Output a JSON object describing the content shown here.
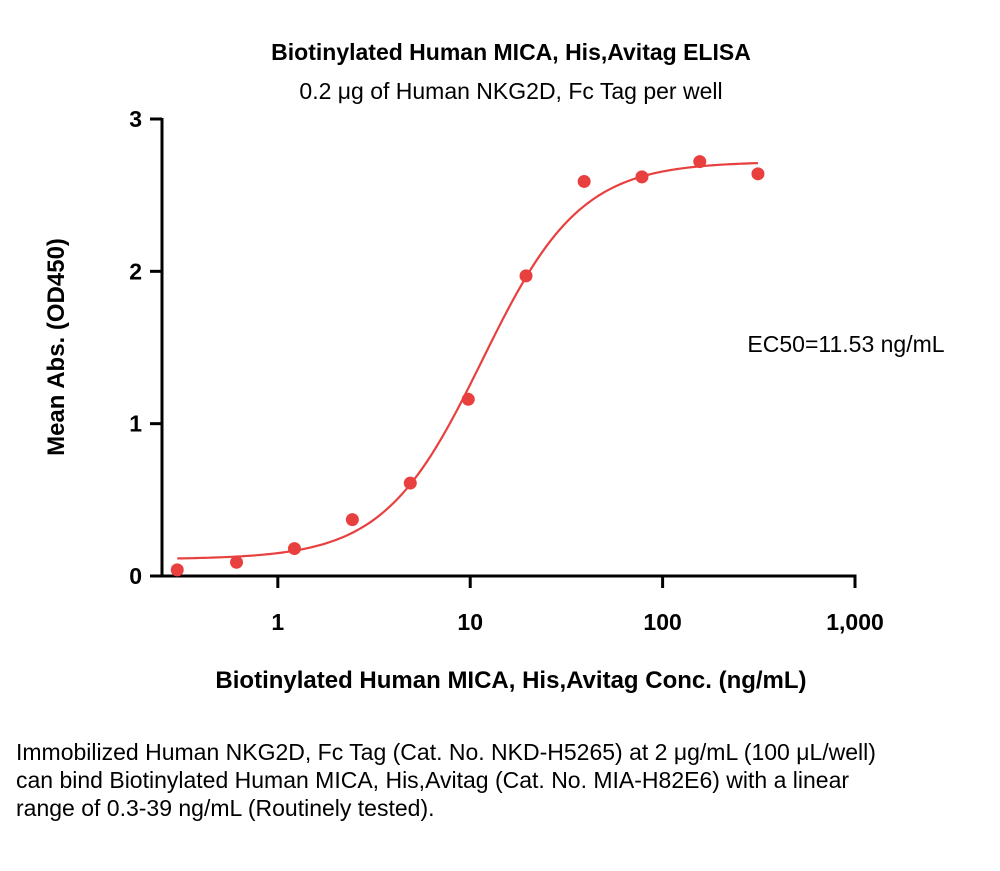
{
  "colors": {
    "series": "#e8403f",
    "axis": "#000000"
  },
  "chart_data": {
    "type": "scatter",
    "title": "Biotinylated Human MICA, His,Avitag ELISA",
    "subtitle": "0.2 μg of Human NKG2D, Fc Tag  per well",
    "xlabel": "Biotinylated Human MICA, His,Avitag Conc. (ng/mL)",
    "ylabel": "Mean Abs. (OD450)",
    "xscale": "log",
    "xlim": [
      0.25,
      1000
    ],
    "ylim": [
      0,
      3
    ],
    "xticks": [
      1,
      10,
      100,
      1000
    ],
    "xtick_labels": [
      "1",
      "10",
      "100",
      "1,000"
    ],
    "yticks": [
      0,
      1,
      2,
      3
    ],
    "ytick_labels": [
      "0",
      "1",
      "2",
      "3"
    ],
    "grid": false,
    "series": [
      {
        "x": [
          0.3,
          0.61,
          1.22,
          2.44,
          4.88,
          9.77,
          19.5,
          39.1,
          78.1,
          156,
          313
        ],
        "y": [
          0.04,
          0.09,
          0.18,
          0.37,
          0.61,
          1.16,
          1.97,
          2.59,
          2.62,
          2.72,
          2.64
        ]
      }
    ],
    "fit": {
      "model": "4PL",
      "bottom": 0.11,
      "top": 2.72,
      "ec50": 11.53,
      "hill": 1.7
    },
    "annotations": [
      {
        "text": "EC50=11.53 ng/mL"
      }
    ]
  },
  "caption": "Immobilized Human NKG2D, Fc Tag (Cat. No. NKD-H5265) at 2 μg/mL (100 μL/well) can bind Biotinylated Human MICA, His,Avitag (Cat. No. MIA-H82E6) with a linear range of 0.3-39 ng/mL (Routinely tested)."
}
